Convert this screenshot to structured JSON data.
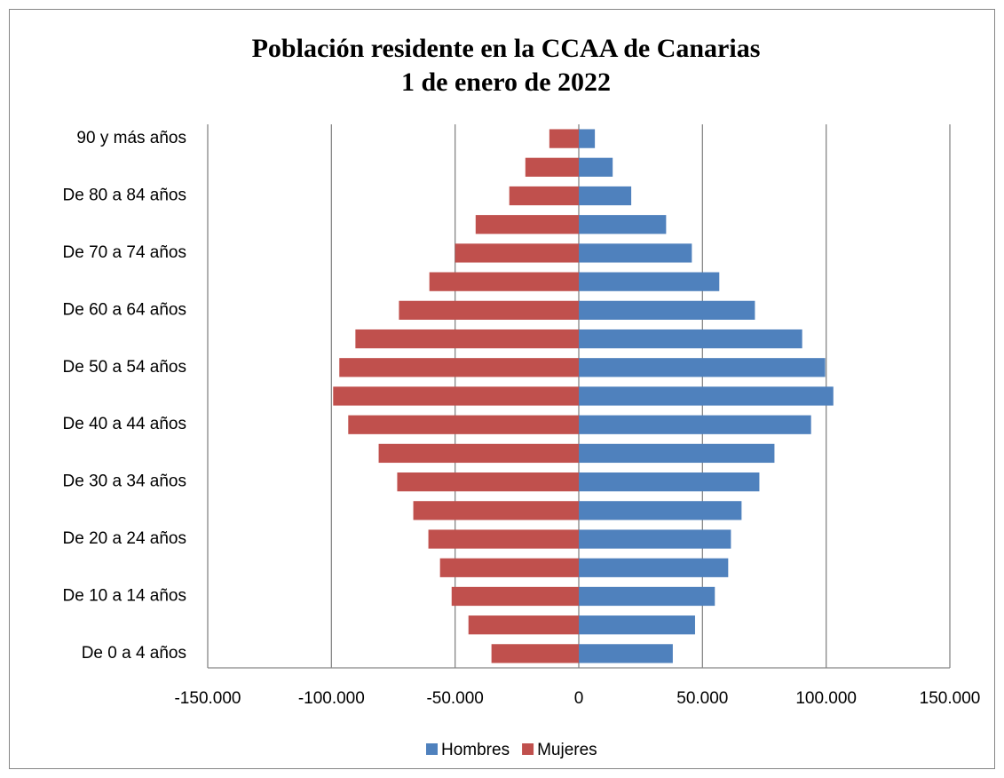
{
  "chart_data": {
    "type": "bar",
    "orientation": "horizontal",
    "title": [
      "Población residente en la CCAA de Canarias",
      "1 de enero de 2022"
    ],
    "categories": [
      "De 0 a 4 años",
      null,
      "De 10 a 14 años",
      null,
      "De 20 a 24 años",
      null,
      "De 30 a 34 años",
      null,
      "De 40 a 44 años",
      null,
      "De 50 a 54 años",
      null,
      "De 60 a 64 años",
      null,
      "De 70 a 74 años",
      null,
      "De 80 a 84 años",
      null,
      "90 y más años"
    ],
    "series": [
      {
        "name": "Hombres",
        "color": "#4f81bd",
        "values": [
          38000,
          47000,
          55000,
          60400,
          61500,
          65800,
          73000,
          79100,
          93900,
          102900,
          99600,
          90300,
          71200,
          56800,
          45700,
          35300,
          21200,
          13700,
          6500
        ]
      },
      {
        "name": "Mujeres",
        "color": "#c0504d",
        "values": [
          -35300,
          -44600,
          -51400,
          -56100,
          -60800,
          -66900,
          -73400,
          -80900,
          -93200,
          -99300,
          -96800,
          -90300,
          -72700,
          -60400,
          -50000,
          -41700,
          -28100,
          -21600,
          -11900
        ]
      }
    ],
    "xlim": [
      -150000,
      150000
    ],
    "xticks": [
      {
        "value": -150000,
        "label": "-150.000"
      },
      {
        "value": -100000,
        "label": "-100.000"
      },
      {
        "value": -50000,
        "label": "-50.000"
      },
      0,
      {
        "value": 50000,
        "label": "50.000"
      },
      {
        "value": 100000,
        "label": "100.000"
      },
      {
        "value": 150000,
        "label": "150.000"
      }
    ],
    "grid": true,
    "legend": "bottom"
  }
}
